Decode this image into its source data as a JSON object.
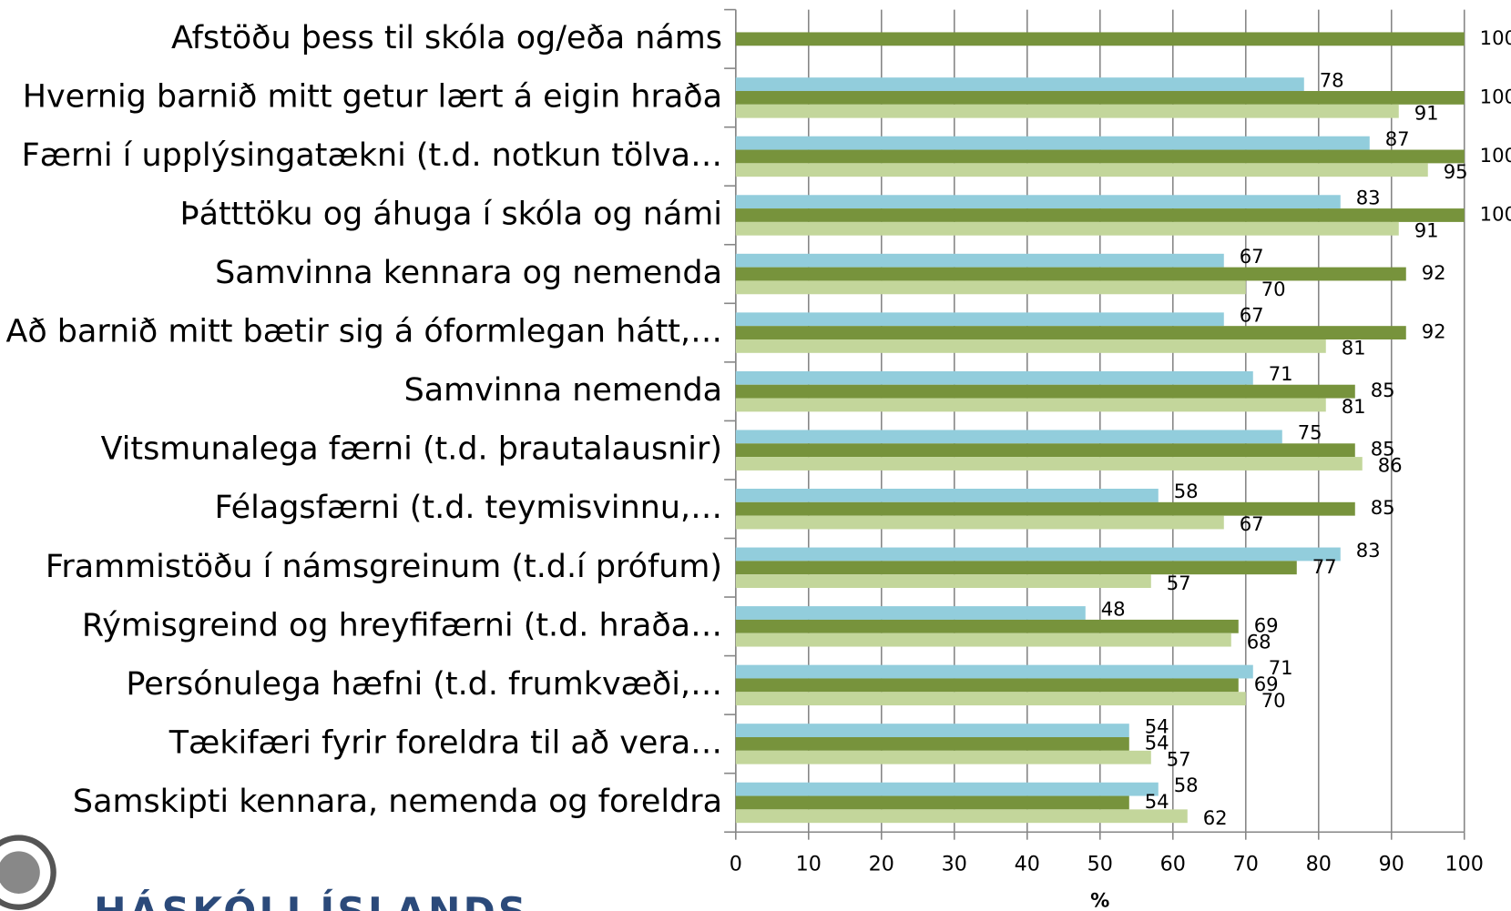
{
  "chart_data": {
    "type": "barh",
    "categories": [
      "Afstöðu þess til skóla og/eða náms",
      "Hvernig barnið mitt getur lært á eigin hraða",
      "Færni í upplýsingatækni (t.d. notkun tölva…",
      "Þátttöku og áhuga í skóla og námi",
      "Samvinna kennara og nemenda",
      "Að barnið mitt bætir sig á óformlegan hátt,…",
      "Samvinna nemenda",
      "Vitsmunalega færni (t.d. þrautalausnir)",
      "Félagsfærni (t.d. teymisvinnu,…",
      "Frammistöðu í námsgreinum (t.d.í prófum)",
      "Rýmisgreind og hreyfifærni (t.d. hraða…",
      "Persónulega hæfni (t.d. frumkvæði,…",
      "Tækifæri fyrir foreldra til að vera…",
      "Samskipti kennara, nemenda og foreldra"
    ],
    "series": [
      {
        "color": "#92cddc",
        "values": [
          null,
          78,
          87,
          83,
          67,
          67,
          71,
          75,
          58,
          83,
          48,
          71,
          54,
          58
        ]
      },
      {
        "color": "#77933c",
        "values": [
          100,
          100,
          100,
          100,
          92,
          92,
          85,
          85,
          85,
          77,
          69,
          69,
          54,
          54
        ]
      },
      {
        "color": "#c3d69b",
        "values": [
          null,
          91,
          95,
          91,
          70,
          81,
          81,
          86,
          67,
          57,
          68,
          70,
          57,
          62
        ]
      }
    ],
    "xlabel": "%",
    "xlim": [
      0,
      100
    ],
    "xticks": [
      0,
      10,
      20,
      30,
      40,
      50,
      60,
      70,
      80,
      90,
      100
    ],
    "grid": true,
    "logo_text": "HÁSKÓLI ÍSLANDS"
  }
}
